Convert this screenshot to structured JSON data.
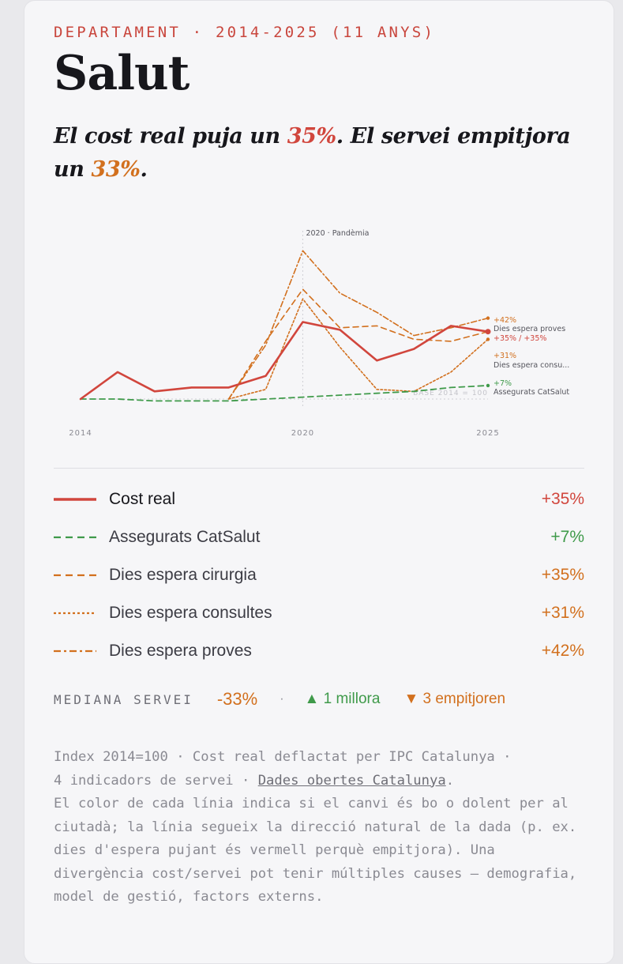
{
  "header": {
    "kicker": "DEPARTAMENT · 2014-2025 (11 ANYS)",
    "title": "Salut",
    "subtitle_part1": "El cost real puja un ",
    "subtitle_cost": "35%",
    "subtitle_part2": ". El servei empitjora un ",
    "subtitle_service": "33%",
    "subtitle_part3": "."
  },
  "chart_data": {
    "type": "line",
    "x": [
      2014,
      2015,
      2016,
      2017,
      2018,
      2019,
      2020,
      2021,
      2022,
      2023,
      2024,
      2025
    ],
    "x_ticks": [
      "2014",
      "2020",
      "2025"
    ],
    "ylim": [
      90,
      180
    ],
    "annotation": {
      "x": 2020,
      "label": "2020 · Pandèmia"
    },
    "base_label": "BASE 2014 = 100",
    "series": [
      {
        "name": "Cost real",
        "color": "#d1463d",
        "dash": "solid",
        "width": 2.6,
        "values": [
          100,
          114,
          104,
          106,
          106,
          112,
          140,
          136,
          120,
          126,
          138,
          135
        ],
        "end_label": "+35% / +35%",
        "end_label_color": "#d1463d"
      },
      {
        "name": "Assegurats CatSalut",
        "color": "#3f9a4a",
        "dash": "long",
        "width": 1.8,
        "values": [
          100,
          100,
          99,
          99,
          99,
          100,
          101,
          102,
          103,
          104,
          106,
          107
        ],
        "end_label": "+7%",
        "end_label_color": "#3f9a4a",
        "end_sub": "Assegurats CatSalut"
      },
      {
        "name": "Dies espera cirurgia",
        "color": "#d2701e",
        "dash": "long",
        "width": 1.6,
        "values": [
          null,
          null,
          null,
          null,
          100,
          130,
          157,
          137,
          138,
          131,
          130,
          135
        ]
      },
      {
        "name": "Dies espera consultes",
        "color": "#d2701e",
        "dash": "dot",
        "width": 1.6,
        "values": [
          null,
          null,
          null,
          null,
          100,
          105,
          152,
          127,
          105,
          104,
          114,
          131
        ],
        "end_label": "+31%",
        "end_label_color": "#d2701e",
        "end_sub": "Dies espera consu..."
      },
      {
        "name": "Dies espera proves",
        "color": "#d2701e",
        "dash": "dashdot",
        "width": 1.6,
        "values": [
          null,
          null,
          null,
          null,
          100,
          128,
          177,
          155,
          145,
          133,
          137,
          142
        ],
        "end_label": "+42%",
        "end_label_color": "#d2701e",
        "end_sub": "Dies espera proves"
      }
    ]
  },
  "legend": [
    {
      "name": "Cost real",
      "value": "+35%",
      "color": "#d1463d",
      "dash": "solid"
    },
    {
      "name": "Assegurats CatSalut",
      "value": "+7%",
      "color": "#3f9a4a",
      "dash": "long"
    },
    {
      "name": "Dies espera cirurgia",
      "value": "+35%",
      "color": "#d2701e",
      "dash": "long"
    },
    {
      "name": "Dies espera consultes",
      "value": "+31%",
      "color": "#d2701e",
      "dash": "dot"
    },
    {
      "name": "Dies espera proves",
      "value": "+42%",
      "color": "#d2701e",
      "dash": "dashdot"
    }
  ],
  "summary": {
    "label": "MEDIANA SERVEI",
    "value": "-33%",
    "separator": "·",
    "improve": "▲ 1 millora",
    "worsen": "▼ 3 empitjoren"
  },
  "notes": {
    "line1": "Index 2014=100 · Cost real deflactat per IPC Catalunya ·",
    "line2_pre": "4 indicadors de servei · ",
    "line2_link": "Dades obertes Catalunya",
    "line2_post": ".",
    "paragraph": "El color de cada línia indica si el canvi és bo o dolent per al ciutadà; la línia segueix la direcció natural de la dada (p. ex. dies d'espera pujant és vermell perquè empitjora). Una divergència cost/servei pot tenir múltiples causes — demografia, model de gestió, factors externs."
  }
}
